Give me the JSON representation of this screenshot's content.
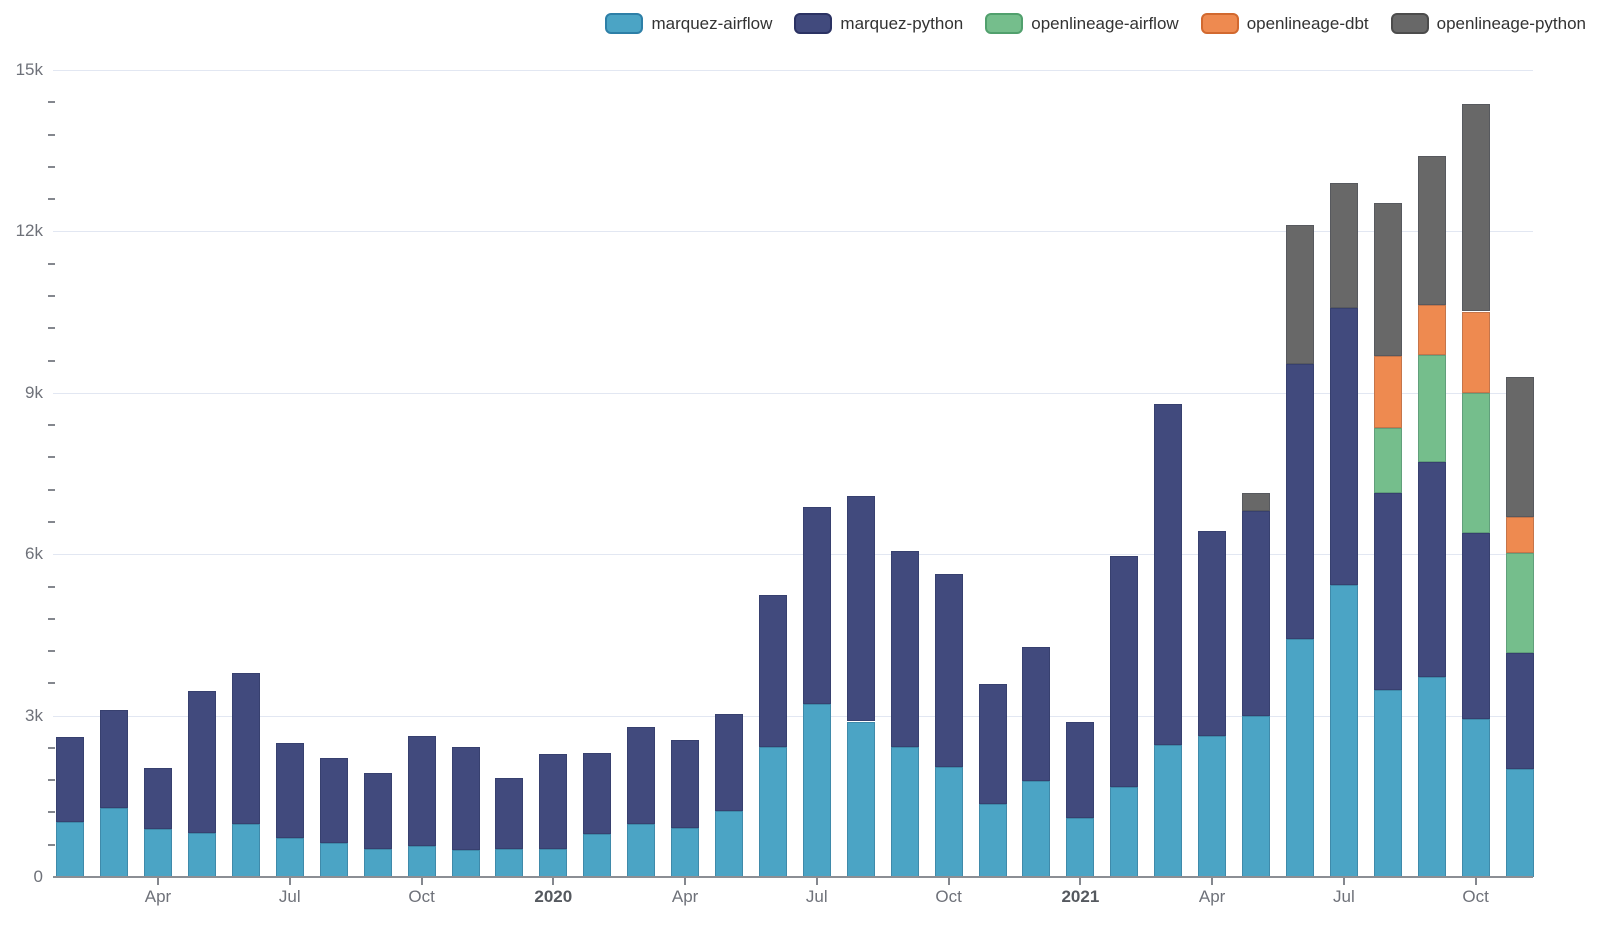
{
  "chart_data": {
    "type": "bar",
    "stacked": true,
    "title": "",
    "x": [
      "2019-02",
      "2019-03",
      "2019-04",
      "2019-05",
      "2019-06",
      "2019-07",
      "2019-08",
      "2019-09",
      "2019-10",
      "2019-11",
      "2019-12",
      "2020-01",
      "2020-02",
      "2020-03",
      "2020-04",
      "2020-05",
      "2020-06",
      "2020-07",
      "2020-08",
      "2020-09",
      "2020-10",
      "2020-11",
      "2020-12",
      "2021-01",
      "2021-02",
      "2021-03",
      "2021-04",
      "2021-05",
      "2021-06",
      "2021-07",
      "2021-08",
      "2021-09",
      "2021-10",
      "2021-11"
    ],
    "series": [
      {
        "name": "marquez-airflow",
        "color": "#4ba4c5",
        "border_color": "#2d7fa7",
        "values": [
          1030,
          1280,
          900,
          810,
          990,
          730,
          640,
          520,
          570,
          500,
          520,
          520,
          800,
          990,
          910,
          1230,
          2410,
          3210,
          2890,
          2420,
          2040,
          1360,
          1780,
          1090,
          1680,
          2460,
          2630,
          3000,
          4420,
          5420,
          3480,
          3710,
          2940,
          2000
        ]
      },
      {
        "name": "marquez-python",
        "color": "#414a7d",
        "border_color": "#2b3263",
        "values": [
          1570,
          1830,
          1130,
          2650,
          2800,
          1770,
          1570,
          1410,
          2060,
          1910,
          1330,
          1770,
          1510,
          1800,
          1640,
          1800,
          2830,
          3660,
          4190,
          3640,
          3590,
          2230,
          2500,
          1790,
          4290,
          6330,
          3810,
          3810,
          5120,
          5150,
          3650,
          4010,
          3450,
          2170
        ]
      },
      {
        "name": "openlineage-airflow",
        "color": "#75be8c",
        "border_color": "#51a06d",
        "values": [
          0,
          0,
          0,
          0,
          0,
          0,
          0,
          0,
          0,
          0,
          0,
          0,
          0,
          0,
          0,
          0,
          0,
          0,
          0,
          0,
          0,
          0,
          0,
          0,
          0,
          0,
          0,
          0,
          0,
          0,
          1220,
          1980,
          2610,
          1850
        ]
      },
      {
        "name": "openlineage-dbt",
        "color": "#ee8a50",
        "border_color": "#d2692f",
        "values": [
          0,
          0,
          0,
          0,
          0,
          0,
          0,
          0,
          0,
          0,
          0,
          0,
          0,
          0,
          0,
          0,
          0,
          0,
          0,
          0,
          0,
          0,
          0,
          0,
          0,
          0,
          0,
          0,
          0,
          0,
          1330,
          930,
          1510,
          680
        ]
      },
      {
        "name": "openlineage-python",
        "color": "#686868",
        "border_color": "#4c4c4c",
        "values": [
          0,
          0,
          0,
          0,
          0,
          0,
          0,
          0,
          0,
          0,
          0,
          0,
          0,
          0,
          0,
          0,
          0,
          0,
          0,
          0,
          0,
          0,
          0,
          0,
          0,
          0,
          0,
          330,
          2580,
          2330,
          2840,
          2770,
          3850,
          2600
        ]
      }
    ],
    "ylim": [
      0,
      15000
    ],
    "y_ticks": [
      {
        "value": 0,
        "label": "0"
      },
      {
        "value": 3000,
        "label": "3k"
      },
      {
        "value": 6000,
        "label": "6k"
      },
      {
        "value": 9000,
        "label": "9k"
      },
      {
        "value": 12000,
        "label": "12k"
      },
      {
        "value": 15000,
        "label": "15k"
      }
    ],
    "y_minor_tick_step": 600,
    "x_ticks": [
      {
        "bar_index": 2,
        "label": "Apr",
        "bold": false
      },
      {
        "bar_index": 5,
        "label": "Jul",
        "bold": false
      },
      {
        "bar_index": 8,
        "label": "Oct",
        "bold": false
      },
      {
        "bar_index": 11,
        "label": "2020",
        "bold": true
      },
      {
        "bar_index": 14,
        "label": "Apr",
        "bold": false
      },
      {
        "bar_index": 17,
        "label": "Jul",
        "bold": false
      },
      {
        "bar_index": 20,
        "label": "Oct",
        "bold": false
      },
      {
        "bar_index": 23,
        "label": "2021",
        "bold": true
      },
      {
        "bar_index": 26,
        "label": "Apr",
        "bold": false
      },
      {
        "bar_index": 29,
        "label": "Jul",
        "bold": false
      },
      {
        "bar_index": 32,
        "label": "Oct",
        "bold": false
      }
    ],
    "legend_position": "top-right",
    "grid": true,
    "colors": {
      "background": "#ffffff",
      "gridline": "#e2e7f2",
      "axis_line": "#8b8e94",
      "tick": "#84878e",
      "axis_label": "#6e7179",
      "year_label": "#55595f",
      "legend_text": "#333333"
    }
  }
}
